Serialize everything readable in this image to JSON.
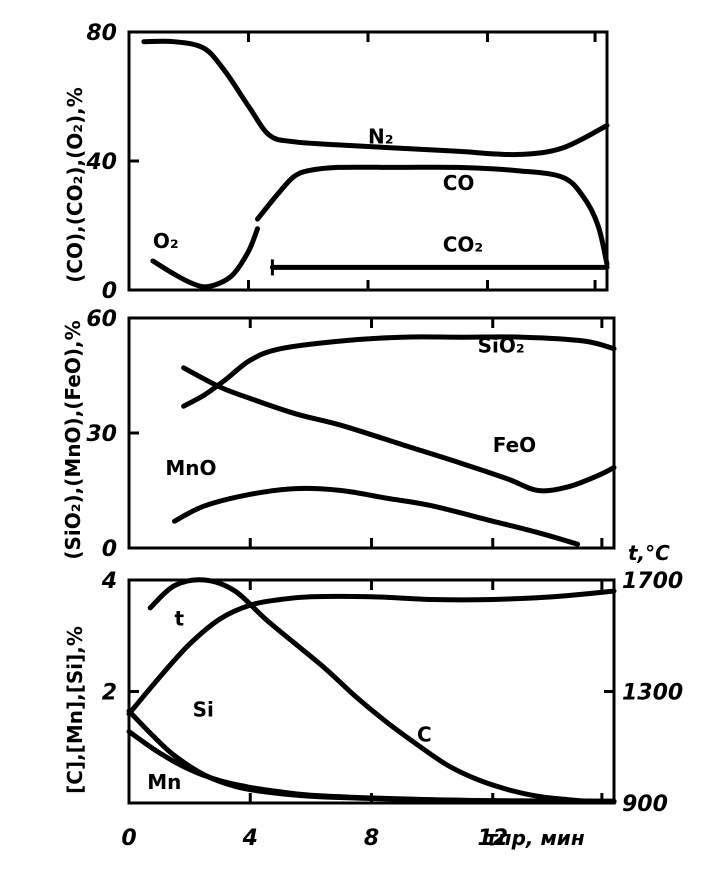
{
  "chart_data": [
    {
      "type": "line",
      "ylabel": "(CO),(CO₂),(O₂),%",
      "ylim": [
        0,
        80
      ],
      "xlim": [
        0,
        16
      ],
      "yticks": [
        "0",
        "40",
        "80"
      ],
      "series": [
        {
          "name": "N₂",
          "x": [
            0.5,
            1.5,
            2.5,
            3.2,
            4,
            4.7,
            5.5,
            7,
            9,
            11,
            13,
            14.5,
            16
          ],
          "y": [
            77,
            77,
            75,
            68,
            57,
            48,
            46,
            45,
            44,
            43,
            42,
            44,
            51
          ]
        },
        {
          "name": "CO",
          "x": [
            4.3,
            5,
            5.5,
            6,
            7,
            9,
            11,
            13,
            14.5,
            15.2,
            15.7,
            16
          ],
          "y": [
            22,
            30,
            35,
            37,
            38,
            38,
            38,
            37,
            35,
            29,
            20,
            8
          ]
        },
        {
          "name": "O₂",
          "x": [
            0.8,
            1.5,
            2,
            2.5,
            3,
            3.5,
            4,
            4.3
          ],
          "y": [
            9,
            5,
            2.5,
            1,
            2,
            5,
            12,
            19
          ]
        },
        {
          "name": "CO₂",
          "x": [
            4.8,
            16
          ],
          "y": [
            7,
            7
          ]
        }
      ]
    },
    {
      "type": "line",
      "ylabel": "(SiO₂),(MnO),(FeO),%",
      "ylim": [
        0,
        60
      ],
      "xlim": [
        0,
        16
      ],
      "yticks": [
        "0",
        "30",
        "60"
      ],
      "series": [
        {
          "name": "SiO₂",
          "x": [
            1.8,
            2.5,
            3.2,
            4,
            5,
            7,
            9,
            11,
            13,
            15,
            16
          ],
          "y": [
            37,
            40,
            44,
            49,
            52,
            54,
            55,
            55,
            55,
            54,
            52
          ]
        },
        {
          "name": "FeO",
          "x": [
            1.8,
            3,
            4,
            5.5,
            7,
            9,
            11,
            12.5,
            13.5,
            14.5,
            15.5,
            16
          ],
          "y": [
            47,
            42,
            39,
            35,
            32,
            27,
            22,
            18,
            15,
            16,
            19,
            21
          ]
        },
        {
          "name": "MnO",
          "x": [
            1.5,
            2.5,
            4,
            5.5,
            7,
            8.5,
            10,
            12,
            13.5,
            14.8
          ],
          "y": [
            7,
            11,
            14,
            15.5,
            15,
            13,
            11,
            7,
            4,
            1
          ]
        }
      ]
    },
    {
      "type": "line",
      "ylabel": "[C],[Mn],[Si],%",
      "y2label": "t,°C",
      "ylim": [
        0,
        4
      ],
      "y2lim": [
        900,
        1700
      ],
      "xlim": [
        0,
        16
      ],
      "xlabel": "τпр, мин",
      "xticks": [
        "0",
        "4",
        "8",
        "12"
      ],
      "yticks": [
        "2",
        "4"
      ],
      "y2ticks": [
        "900",
        "1300",
        "1700"
      ],
      "series": [
        {
          "name": "C",
          "x": [
            0.7,
            1.5,
            2.5,
            3.5,
            4.5,
            5.5,
            6.5,
            7.5,
            8.5,
            9.5,
            10.5,
            11.5,
            12.5,
            13.5,
            14.5,
            15.2,
            16
          ],
          "y": [
            3.5,
            3.9,
            4.0,
            3.8,
            3.3,
            2.85,
            2.4,
            1.9,
            1.45,
            1.05,
            0.68,
            0.42,
            0.24,
            0.12,
            0.06,
            0.03,
            0.02
          ]
        },
        {
          "name": "t",
          "axis": "y2",
          "x": [
            0,
            1,
            2,
            3,
            4,
            5,
            6,
            8,
            10,
            12,
            14,
            16
          ],
          "y": [
            1220,
            1350,
            1470,
            1560,
            1610,
            1630,
            1640,
            1640,
            1630,
            1630,
            1640,
            1660
          ]
        },
        {
          "name": "Si",
          "x": [
            0,
            0.8,
            1.5,
            2.5,
            3.5,
            4.5,
            6,
            8,
            10,
            12,
            16
          ],
          "y": [
            1.65,
            1.2,
            0.85,
            0.5,
            0.3,
            0.2,
            0.12,
            0.08,
            0.06,
            0.04,
            0.03
          ]
        },
        {
          "name": "Mn",
          "x": [
            0,
            1,
            2,
            3,
            4,
            5,
            6,
            8,
            10,
            12,
            16
          ],
          "y": [
            1.28,
            0.9,
            0.6,
            0.4,
            0.28,
            0.2,
            0.14,
            0.09,
            0.06,
            0.04,
            0.03
          ]
        }
      ],
      "annotations": [
        "t,°C"
      ]
    }
  ]
}
